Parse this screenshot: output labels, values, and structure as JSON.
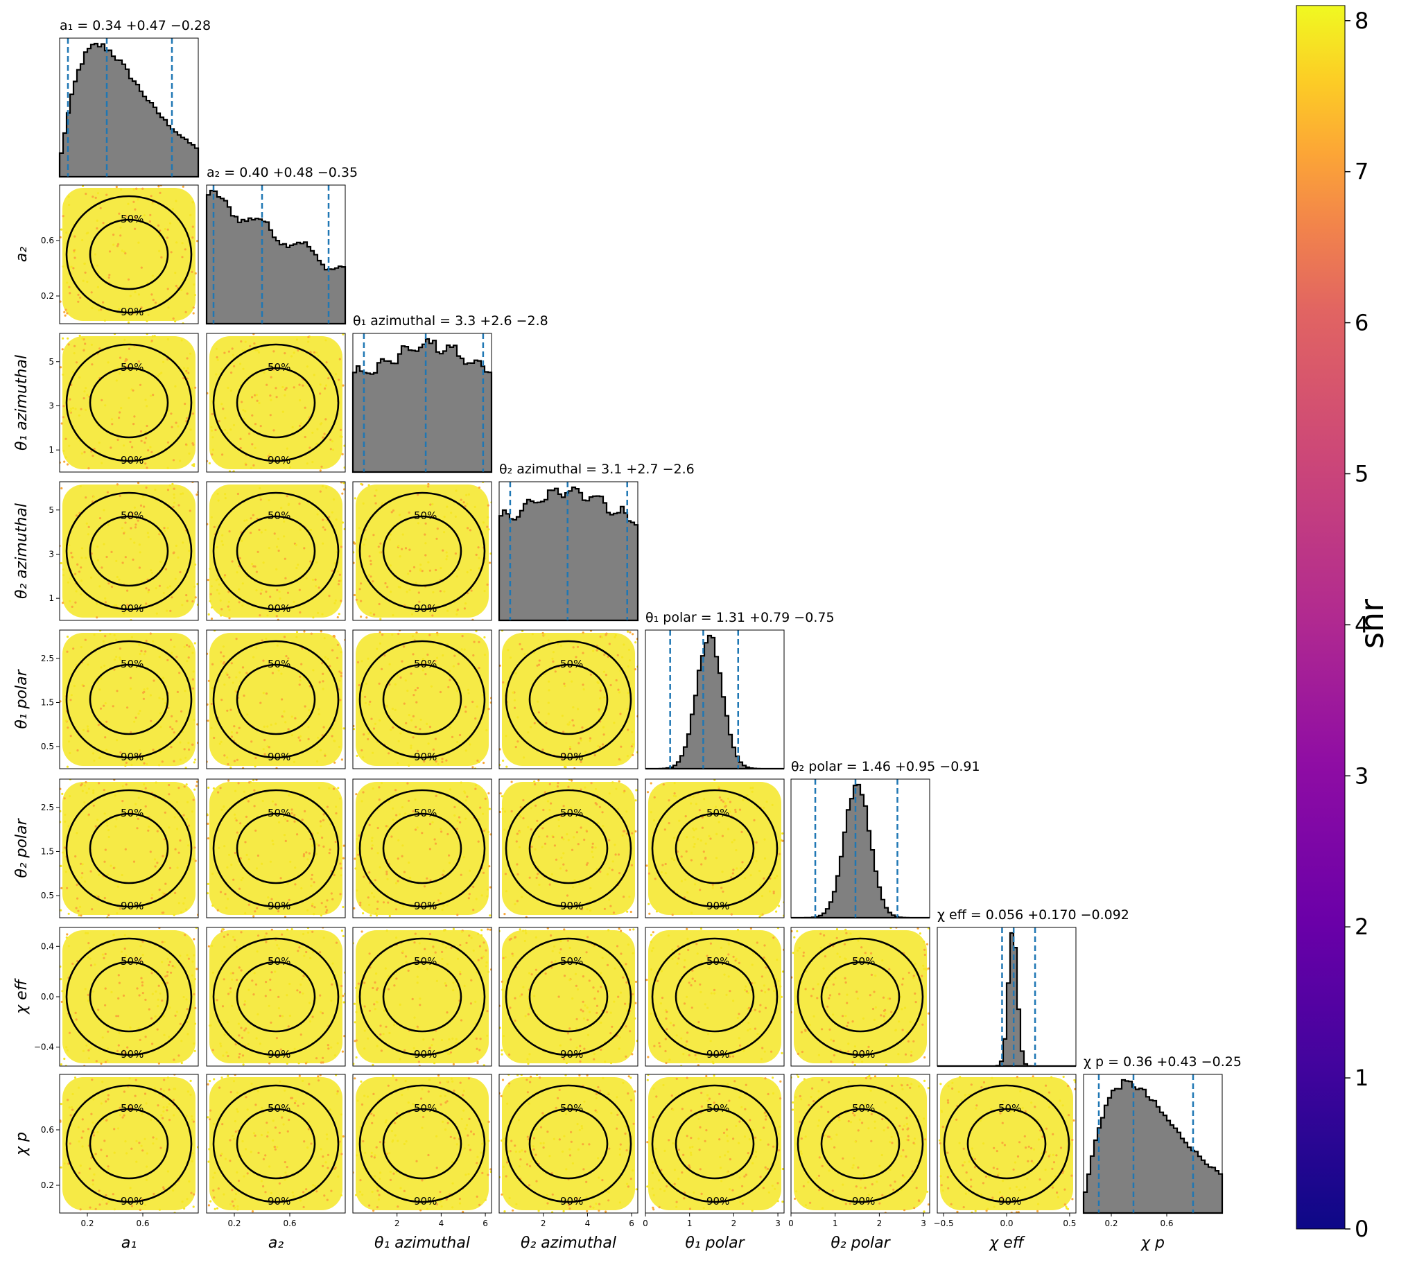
{
  "chart_data": {
    "type": "corner",
    "parameters": [
      {
        "key": "a1",
        "axis_label": "a₁",
        "title": "a₁ = 0.34 +0.47 −0.28",
        "median": 0.34,
        "lower": 0.06,
        "upper": 0.81,
        "range": [
          0.0,
          1.0
        ],
        "ticks": [
          0.2,
          0.6
        ],
        "tick_labels": [
          "0.2",
          "0.6"
        ],
        "shape": "skewright",
        "mode": 0.27
      },
      {
        "key": "a2",
        "axis_label": "a₂",
        "title": "a₂ = 0.40 +0.48 −0.35",
        "median": 0.4,
        "lower": 0.05,
        "upper": 0.88,
        "range": [
          0.0,
          1.0
        ],
        "ticks": [
          0.2,
          0.6
        ],
        "tick_labels": [
          "0.2",
          "0.6"
        ],
        "shape": "decline",
        "mode": 0.1
      },
      {
        "key": "theta1_az",
        "axis_label": "θ₁ azimuthal",
        "title": "θ₁ azimuthal = 3.3 +2.6 −2.8",
        "median": 3.3,
        "lower": 0.5,
        "upper": 5.9,
        "range": [
          0.0,
          6.28
        ],
        "ticks": [
          2,
          4,
          6
        ],
        "tick_labels": [
          "2",
          "4",
          "6"
        ],
        "shape": "flat",
        "mode": 3.5
      },
      {
        "key": "theta2_az",
        "axis_label": "θ₂ azimuthal",
        "title": "θ₂ azimuthal = 3.1 +2.7 −2.6",
        "median": 3.1,
        "lower": 0.5,
        "upper": 5.8,
        "range": [
          0.0,
          6.28
        ],
        "ticks": [
          2,
          4,
          6
        ],
        "tick_labels": [
          "2",
          "4",
          "6"
        ],
        "shape": "flat",
        "mode": 3.1
      },
      {
        "key": "theta1_polar",
        "axis_label": "θ₁ polar",
        "title": "θ₁ polar = 1.31 +0.79 −0.75",
        "median": 1.31,
        "lower": 0.56,
        "upper": 2.1,
        "range": [
          0.0,
          3.14
        ],
        "ticks": [
          0,
          1,
          2,
          3
        ],
        "tick_labels": [
          "0",
          "1",
          "2",
          "3"
        ],
        "shape": "gauss",
        "mode": 1.45
      },
      {
        "key": "theta2_polar",
        "axis_label": "θ₂ polar",
        "title": "θ₂ polar = 1.46 +0.95 −0.91",
        "median": 1.46,
        "lower": 0.55,
        "upper": 2.41,
        "range": [
          0.0,
          3.14
        ],
        "ticks": [
          0,
          1,
          2,
          3
        ],
        "tick_labels": [
          "0",
          "1",
          "2",
          "3"
        ],
        "shape": "gauss",
        "mode": 1.5
      },
      {
        "key": "chi_eff",
        "axis_label": "χ eff",
        "title": "χ eff = 0.056 +0.170 −0.092",
        "median": 0.056,
        "lower": -0.036,
        "upper": 0.226,
        "range": [
          -0.55,
          0.55
        ],
        "ticks": [
          -0.5,
          0.0,
          0.5
        ],
        "tick_labels": [
          "−0.5",
          "0.0",
          "0.5"
        ],
        "shape": "peak",
        "mode": 0.05
      },
      {
        "key": "chi_p",
        "axis_label": "χ p",
        "title": "χ p = 0.36 +0.43 −0.25",
        "median": 0.36,
        "lower": 0.11,
        "upper": 0.79,
        "range": [
          0.0,
          1.0
        ],
        "ticks": [
          0.2,
          0.6
        ],
        "tick_labels": [
          "0.2",
          "0.6"
        ],
        "shape": "skewright",
        "mode": 0.3
      }
    ],
    "row_axis_ticks": {
      "a2": {
        "ticks": [
          0.2,
          0.6
        ],
        "labels": [
          "0.2",
          "0.6"
        ]
      },
      "theta1_az": {
        "ticks": [
          1,
          3,
          5
        ],
        "labels": [
          "1",
          "3",
          "5"
        ]
      },
      "theta2_az": {
        "ticks": [
          1,
          3,
          5
        ],
        "labels": [
          "1",
          "3",
          "5"
        ]
      },
      "theta1_polar": {
        "ticks": [
          0.5,
          1.5,
          2.5
        ],
        "labels": [
          "0.5",
          "1.5",
          "2.5"
        ]
      },
      "theta2_polar": {
        "ticks": [
          0.5,
          1.5,
          2.5
        ],
        "labels": [
          "0.5",
          "1.5",
          "2.5"
        ]
      },
      "chi_eff": {
        "ticks": [
          -0.4,
          0.0,
          0.4
        ],
        "labels": [
          "−0.4",
          "0.0",
          "0.4"
        ]
      },
      "chi_p": {
        "ticks": [
          0.2,
          0.6
        ],
        "labels": [
          "0.2",
          "0.6"
        ]
      }
    },
    "contour_levels": [
      "50%",
      "90%"
    ],
    "colorbar": {
      "label": "snr",
      "min": 0,
      "max": 8.1,
      "ticks": [
        0,
        1,
        2,
        3,
        4,
        5,
        6,
        7,
        8
      ],
      "tick_labels": [
        "0",
        "1",
        "2",
        "3",
        "4",
        "5",
        "6",
        "7",
        "8"
      ],
      "colormap": "plasma"
    },
    "colors": {
      "histogram_fill": "#808080",
      "histogram_edge": "#000000",
      "quantile_line": "#1f77b4",
      "contour": "#000000",
      "scatter_main": "#f5e626",
      "scatter_secondary": "#f9a93a"
    }
  }
}
